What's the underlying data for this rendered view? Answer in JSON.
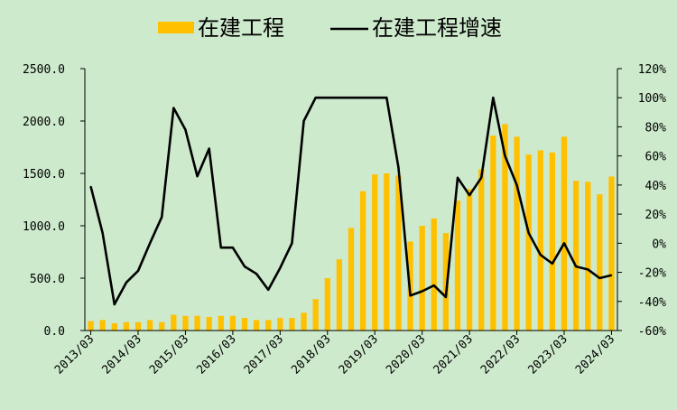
{
  "chart_data": {
    "type": "bar+line",
    "legend": {
      "placement": "top-center",
      "bar_label": "在建工程",
      "line_label": "在建工程增速"
    },
    "colors": {
      "bar": "#ffc000",
      "line": "#000000",
      "background": "#cdeacc"
    },
    "x_tick_labels": [
      "2013/03",
      "2014/03",
      "2015/03",
      "2016/03",
      "2017/03",
      "2018/03",
      "2019/03",
      "2020/03",
      "2021/03",
      "2022/03",
      "2023/03",
      "2024/03"
    ],
    "left_axis": {
      "min": 0,
      "max": 2500,
      "ticks": [
        "0.0",
        "500.0",
        "1000.0",
        "1500.0",
        "2000.0",
        "2500.0"
      ]
    },
    "right_axis": {
      "min": -60,
      "max": 120,
      "ticks": [
        "-60%",
        "-40%",
        "-20%",
        "0%",
        "20%",
        "40%",
        "60%",
        "80%",
        "100%",
        "120%"
      ]
    },
    "periods": [
      "2013Q1",
      "2013Q2",
      "2013Q3",
      "2013Q4",
      "2014Q1",
      "2014Q2",
      "2014Q3",
      "2014Q4",
      "2015Q1",
      "2015Q2",
      "2015Q3",
      "2015Q4",
      "2016Q1",
      "2016Q2",
      "2016Q3",
      "2016Q4",
      "2017Q1",
      "2017Q2",
      "2017Q3",
      "2017Q4",
      "2018Q1",
      "2018Q2",
      "2018Q3",
      "2018Q4",
      "2019Q1",
      "2019Q2",
      "2019Q3",
      "2019Q4",
      "2020Q1",
      "2020Q2",
      "2020Q3",
      "2020Q4",
      "2021Q1",
      "2021Q2",
      "2021Q3",
      "2021Q4",
      "2022Q1",
      "2022Q2",
      "2022Q3",
      "2022Q4",
      "2023Q1",
      "2023Q2",
      "2023Q3",
      "2023Q4",
      "2024Q1"
    ],
    "series": [
      {
        "name": "在建工程",
        "type": "bar",
        "axis": "left",
        "values": [
          90,
          100,
          70,
          80,
          80,
          100,
          80,
          150,
          140,
          140,
          130,
          140,
          140,
          120,
          100,
          100,
          120,
          120,
          170,
          300,
          500,
          680,
          980,
          1330,
          1490,
          1500,
          1480,
          850,
          1000,
          1070,
          930,
          1240,
          1350,
          1540,
          1860,
          1970,
          1850,
          1680,
          1720,
          1700,
          1850,
          1430,
          1420,
          1300,
          1470
        ]
      },
      {
        "name": "在建工程增速",
        "type": "line",
        "axis": "right",
        "values": [
          39,
          7,
          -42,
          -27,
          -19,
          0,
          18,
          93,
          78,
          46,
          65,
          -3,
          -3,
          -16,
          -21,
          -32,
          -17,
          0,
          84,
          100,
          100,
          100,
          100,
          100,
          100,
          100,
          52,
          -36,
          -33,
          -29,
          -37,
          45,
          33,
          45,
          100,
          60,
          40,
          7,
          -8,
          -14,
          0,
          -16,
          -18,
          -24,
          -22
        ]
      }
    ]
  }
}
